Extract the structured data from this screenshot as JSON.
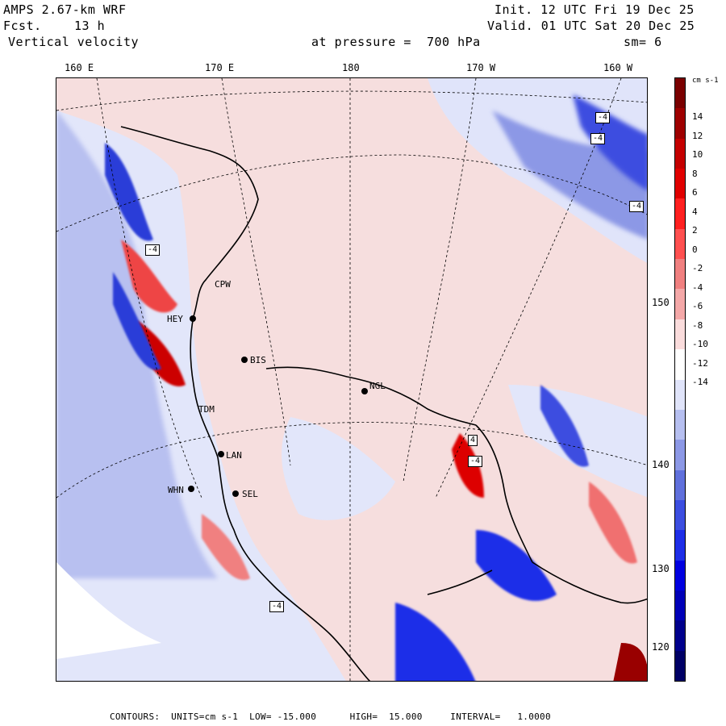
{
  "header": {
    "model": "AMPS 2.67-km WRF",
    "fcst_label": "Fcst.",
    "fcst_value": "13 h",
    "field": "Vertical velocity",
    "init": "Init. 12 UTC Fri 19 Dec 25",
    "valid": "Valid. 01 UTC Sat 20 Dec 25",
    "pressure": "at pressure =  700 hPa",
    "smooth": "sm= 6"
  },
  "lon_labels": [
    "160 E",
    "170 E",
    "180",
    "170 W",
    "160 W"
  ],
  "lat_labels": [
    "150 W",
    "140 W",
    "130 W",
    "120 W"
  ],
  "stations": [
    "CPW",
    "HEY",
    "BIS",
    "NGL",
    "TDM",
    "LAN",
    "WHN",
    "SEL"
  ],
  "contour_box_labels": [
    "-4",
    "-4",
    "-4",
    "-4",
    "4",
    "-4",
    "-4"
  ],
  "colorbar": {
    "unit": "cm s-1",
    "ticks": [
      "14",
      "12",
      "10",
      "8",
      "6",
      "4",
      "2",
      "0",
      "-2",
      "-4",
      "-6",
      "-8",
      "-10",
      "-12",
      "-14"
    ],
    "colors": [
      "#7a0000",
      "#9e0000",
      "#c40000",
      "#e00000",
      "#ff2020",
      "#ff5050",
      "#f08080",
      "#f4a8a8",
      "#fadcdc",
      "#ffffff",
      "#e0e4fa",
      "#b6bff0",
      "#8c98e6",
      "#6070dc",
      "#3c4ee0",
      "#1e2ee8",
      "#0000e0",
      "#0000b8",
      "#00008c",
      "#000066"
    ]
  },
  "footer": "CONTOURS:  UNITS=cm s-1  LOW= -15.000      HIGH=  15.000     INTERVAL=   1.0000"
}
